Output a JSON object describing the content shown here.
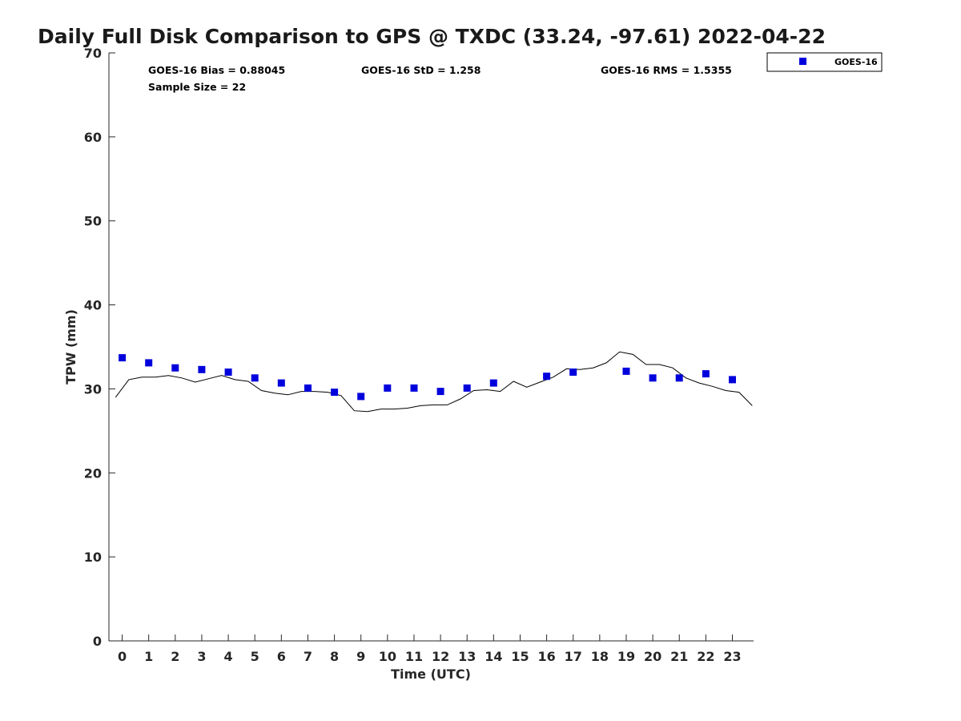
{
  "chart_data": {
    "type": "scatter",
    "title": "Daily Full Disk Comparison to GPS @ TXDC (33.24, -97.61) 2022-04-22",
    "xlabel": "Time (UTC)",
    "ylabel": "TPW (mm)",
    "xlim": [
      -0.5,
      23.8
    ],
    "ylim": [
      0,
      70
    ],
    "x_ticks": [
      0,
      1,
      2,
      3,
      4,
      5,
      6,
      7,
      8,
      9,
      10,
      11,
      12,
      13,
      14,
      15,
      16,
      17,
      18,
      19,
      20,
      21,
      22,
      23
    ],
    "y_ticks": [
      0,
      10,
      20,
      30,
      40,
      50,
      60,
      70
    ],
    "grid": false,
    "legend_position": "top-right, outside plot",
    "stats": {
      "bias": "GOES-16 Bias = 0.88045",
      "std": "GOES-16 StD = 1.258",
      "rms": "GOES-16 RMS = 1.5355",
      "sample_size": "Sample Size = 22"
    },
    "series": [
      {
        "name": "GOES-16",
        "kind": "markers",
        "color": "#0000dd",
        "x": [
          0,
          1,
          2,
          3,
          4,
          5,
          6,
          7,
          8,
          9,
          10,
          11,
          12,
          13,
          14,
          16,
          17,
          19,
          20,
          21,
          22,
          23
        ],
        "y": [
          33.7,
          33.1,
          32.5,
          32.3,
          32.0,
          31.3,
          30.7,
          30.1,
          29.6,
          29.1,
          30.1,
          30.1,
          29.7,
          30.1,
          30.7,
          31.5,
          32.0,
          32.1,
          31.3,
          31.3,
          31.8,
          31.1
        ]
      },
      {
        "kind": "line",
        "color": "#000000",
        "x": [
          -0.25,
          0.25,
          0.75,
          1.25,
          1.75,
          2.25,
          2.75,
          3.25,
          3.75,
          4.25,
          4.75,
          5.25,
          5.75,
          6.25,
          6.75,
          7.25,
          7.75,
          8.25,
          8.75,
          9.25,
          9.75,
          10.25,
          10.75,
          11.25,
          11.75,
          12.25,
          12.75,
          13.25,
          13.75,
          14.25,
          14.75,
          15.25,
          15.75,
          16.25,
          16.75,
          17.25,
          17.75,
          18.25,
          18.75,
          19.25,
          19.75,
          20.25,
          20.75,
          21.25,
          21.75,
          22.25,
          22.75,
          23.25,
          23.75
        ],
        "y": [
          29.0,
          31.1,
          31.4,
          31.4,
          31.6,
          31.3,
          30.8,
          31.2,
          31.6,
          31.1,
          30.9,
          29.8,
          29.5,
          29.3,
          29.7,
          29.7,
          29.6,
          29.2,
          27.4,
          27.3,
          27.6,
          27.6,
          27.7,
          28.0,
          28.1,
          28.1,
          28.8,
          29.8,
          29.9,
          29.7,
          30.9,
          30.2,
          30.8,
          31.4,
          32.4,
          32.3,
          32.5,
          33.1,
          34.4,
          34.1,
          32.9,
          32.9,
          32.5,
          31.3,
          30.7,
          30.3,
          29.8,
          29.6,
          28.0
        ]
      }
    ]
  }
}
